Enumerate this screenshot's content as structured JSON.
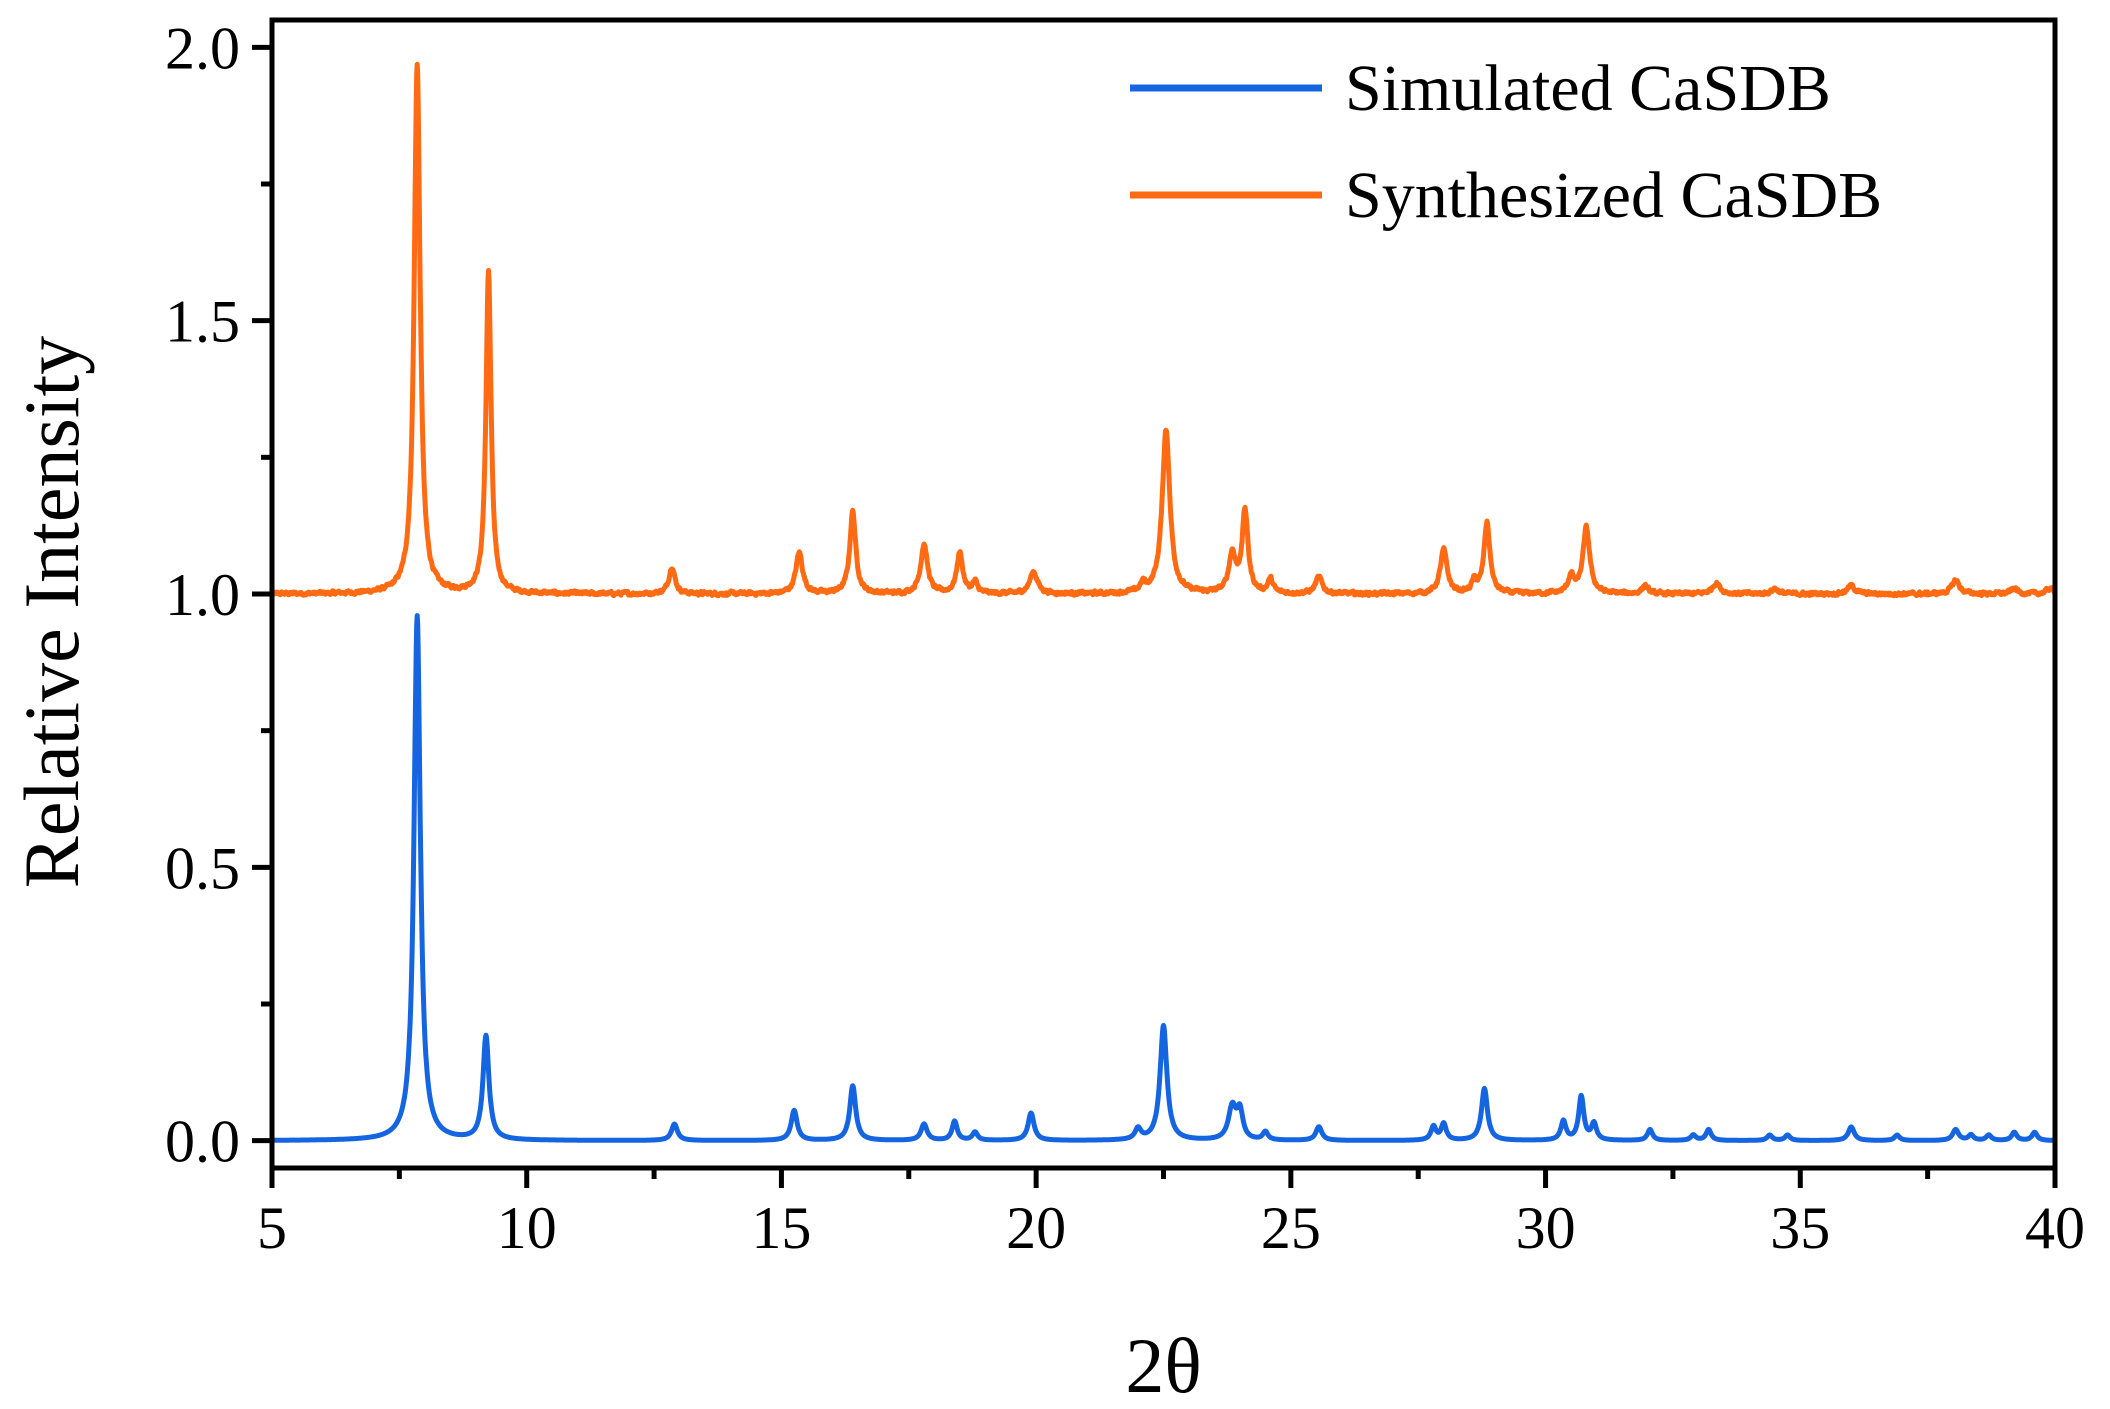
{
  "chart_data": {
    "type": "line",
    "title": "",
    "xlabel": "2θ",
    "ylabel": "Relative Intensity",
    "xlim": [
      5,
      40
    ],
    "ylim": [
      -0.05,
      2.05
    ],
    "x_ticks": [
      5,
      10,
      15,
      20,
      25,
      30,
      35,
      40
    ],
    "x_tick_labels": [
      "5",
      "10",
      "15",
      "20",
      "25",
      "30",
      "35",
      "40"
    ],
    "y_ticks": [
      0.0,
      0.5,
      1.0,
      1.5,
      2.0
    ],
    "y_tick_labels": [
      "0.0",
      "0.5",
      "1.0",
      "1.5",
      "2.0"
    ],
    "grid": false,
    "legend_position": "top-right",
    "series": [
      {
        "name": "Simulated CaSDB",
        "color": "#1565e0",
        "baseline": 0.0,
        "noise": 0.0,
        "peaks": [
          {
            "x": 7.85,
            "h": 0.96,
            "w": 0.075
          },
          {
            "x": 9.2,
            "h": 0.19,
            "w": 0.07
          },
          {
            "x": 12.9,
            "h": 0.03,
            "w": 0.07
          },
          {
            "x": 15.25,
            "h": 0.055,
            "w": 0.07
          },
          {
            "x": 16.4,
            "h": 0.1,
            "w": 0.07
          },
          {
            "x": 17.8,
            "h": 0.03,
            "w": 0.07
          },
          {
            "x": 18.4,
            "h": 0.035,
            "w": 0.06
          },
          {
            "x": 18.8,
            "h": 0.015,
            "w": 0.06
          },
          {
            "x": 19.9,
            "h": 0.05,
            "w": 0.07
          },
          {
            "x": 22.0,
            "h": 0.02,
            "w": 0.07
          },
          {
            "x": 22.5,
            "h": 0.21,
            "w": 0.08
          },
          {
            "x": 23.85,
            "h": 0.06,
            "w": 0.09
          },
          {
            "x": 24.0,
            "h": 0.05,
            "w": 0.07
          },
          {
            "x": 24.5,
            "h": 0.015,
            "w": 0.06
          },
          {
            "x": 25.55,
            "h": 0.025,
            "w": 0.07
          },
          {
            "x": 27.8,
            "h": 0.025,
            "w": 0.06
          },
          {
            "x": 28.0,
            "h": 0.03,
            "w": 0.06
          },
          {
            "x": 28.8,
            "h": 0.095,
            "w": 0.07
          },
          {
            "x": 30.35,
            "h": 0.035,
            "w": 0.06
          },
          {
            "x": 30.7,
            "h": 0.08,
            "w": 0.06
          },
          {
            "x": 30.95,
            "h": 0.03,
            "w": 0.06
          },
          {
            "x": 32.05,
            "h": 0.02,
            "w": 0.06
          },
          {
            "x": 32.9,
            "h": 0.01,
            "w": 0.06
          },
          {
            "x": 33.2,
            "h": 0.02,
            "w": 0.06
          },
          {
            "x": 34.4,
            "h": 0.01,
            "w": 0.06
          },
          {
            "x": 34.75,
            "h": 0.01,
            "w": 0.06
          },
          {
            "x": 36.0,
            "h": 0.025,
            "w": 0.07
          },
          {
            "x": 36.9,
            "h": 0.01,
            "w": 0.06
          },
          {
            "x": 38.05,
            "h": 0.02,
            "w": 0.07
          },
          {
            "x": 38.35,
            "h": 0.01,
            "w": 0.06
          },
          {
            "x": 38.7,
            "h": 0.01,
            "w": 0.06
          },
          {
            "x": 39.2,
            "h": 0.015,
            "w": 0.06
          },
          {
            "x": 39.6,
            "h": 0.015,
            "w": 0.06
          }
        ]
      },
      {
        "name": "Synthesized CaSDB",
        "color": "#ff6a13",
        "baseline": 1.0,
        "noise": 0.006,
        "peaks": [
          {
            "x": 7.85,
            "h": 0.97,
            "w": 0.07
          },
          {
            "x": 9.25,
            "h": 0.59,
            "w": 0.06
          },
          {
            "x": 12.85,
            "h": 0.05,
            "w": 0.07
          },
          {
            "x": 15.35,
            "h": 0.075,
            "w": 0.08
          },
          {
            "x": 16.4,
            "h": 0.15,
            "w": 0.07
          },
          {
            "x": 17.8,
            "h": 0.09,
            "w": 0.08
          },
          {
            "x": 18.5,
            "h": 0.075,
            "w": 0.07
          },
          {
            "x": 18.8,
            "h": 0.02,
            "w": 0.06
          },
          {
            "x": 19.95,
            "h": 0.04,
            "w": 0.09
          },
          {
            "x": 22.1,
            "h": 0.015,
            "w": 0.06
          },
          {
            "x": 22.55,
            "h": 0.3,
            "w": 0.09
          },
          {
            "x": 23.85,
            "h": 0.07,
            "w": 0.08
          },
          {
            "x": 24.1,
            "h": 0.15,
            "w": 0.07
          },
          {
            "x": 24.6,
            "h": 0.025,
            "w": 0.06
          },
          {
            "x": 25.55,
            "h": 0.03,
            "w": 0.08
          },
          {
            "x": 28.0,
            "h": 0.08,
            "w": 0.08
          },
          {
            "x": 28.6,
            "h": 0.02,
            "w": 0.06
          },
          {
            "x": 28.85,
            "h": 0.13,
            "w": 0.07
          },
          {
            "x": 30.5,
            "h": 0.03,
            "w": 0.07
          },
          {
            "x": 30.8,
            "h": 0.12,
            "w": 0.08
          },
          {
            "x": 31.95,
            "h": 0.015,
            "w": 0.07
          },
          {
            "x": 33.35,
            "h": 0.02,
            "w": 0.09
          },
          {
            "x": 34.5,
            "h": 0.01,
            "w": 0.08
          },
          {
            "x": 36.0,
            "h": 0.015,
            "w": 0.09
          },
          {
            "x": 38.05,
            "h": 0.025,
            "w": 0.09
          },
          {
            "x": 39.2,
            "h": 0.01,
            "w": 0.08
          },
          {
            "x": 39.9,
            "h": 0.01,
            "w": 0.08
          }
        ]
      }
    ]
  }
}
